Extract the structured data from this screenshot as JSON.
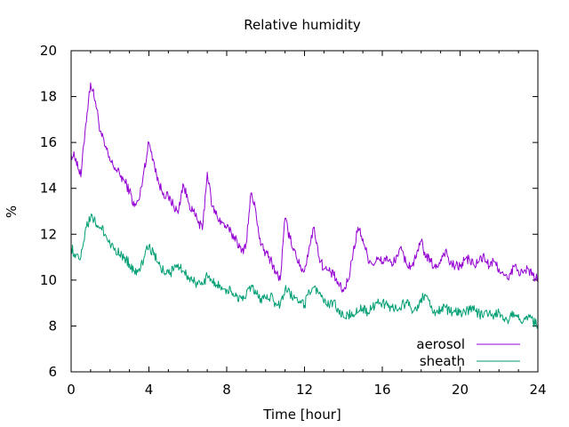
{
  "chart_data": {
    "type": "line",
    "title": "Relative humidity",
    "xlabel": "Time [hour]",
    "ylabel": "%",
    "xlim": [
      0,
      24
    ],
    "ylim": [
      6,
      20
    ],
    "x_ticks": [
      0,
      4,
      8,
      12,
      16,
      20,
      24
    ],
    "y_ticks": [
      6,
      8,
      10,
      12,
      14,
      16,
      18,
      20
    ],
    "x_tick_labels": [
      "0",
      "4",
      "8",
      "12",
      "16",
      "20",
      "24"
    ],
    "y_tick_labels": [
      "6",
      "8",
      "10",
      "12",
      "14",
      "16",
      "18",
      "20"
    ],
    "grid": false,
    "legend_position": "bottom-right",
    "x": [
      0.0,
      0.25,
      0.5,
      0.75,
      1.0,
      1.25,
      1.5,
      1.75,
      2.0,
      2.25,
      2.5,
      2.75,
      3.0,
      3.25,
      3.5,
      3.75,
      4.0,
      4.25,
      4.5,
      4.75,
      5.0,
      5.25,
      5.5,
      5.75,
      6.0,
      6.25,
      6.5,
      6.75,
      7.0,
      7.25,
      7.5,
      7.75,
      8.0,
      8.25,
      8.5,
      8.75,
      9.0,
      9.25,
      9.5,
      9.75,
      10.0,
      10.25,
      10.5,
      10.75,
      11.0,
      11.25,
      11.5,
      11.75,
      12.0,
      12.25,
      12.5,
      12.75,
      13.0,
      13.25,
      13.5,
      13.75,
      14.0,
      14.25,
      14.5,
      14.75,
      15.0,
      15.25,
      15.5,
      15.75,
      16.0,
      16.25,
      16.5,
      16.75,
      17.0,
      17.25,
      17.5,
      17.75,
      18.0,
      18.25,
      18.5,
      18.75,
      19.0,
      19.25,
      19.5,
      19.75,
      20.0,
      20.25,
      20.5,
      20.75,
      21.0,
      21.25,
      21.5,
      21.75,
      22.0,
      22.25,
      22.5,
      22.75,
      23.0,
      23.25,
      23.5,
      23.75,
      24.0
    ],
    "series": [
      {
        "name": "aerosol",
        "color": "#9400d3",
        "values": [
          15.5,
          15.3,
          14.5,
          16.8,
          18.6,
          17.8,
          16.5,
          15.8,
          15.2,
          14.9,
          14.6,
          14.3,
          13.9,
          13.2,
          13.5,
          14.8,
          16.0,
          15.2,
          14.2,
          13.8,
          13.6,
          13.3,
          12.9,
          14.2,
          13.5,
          13.0,
          12.6,
          12.2,
          14.7,
          13.2,
          12.8,
          12.5,
          12.3,
          12.0,
          11.8,
          11.2,
          11.6,
          13.8,
          13.0,
          11.5,
          11.2,
          10.9,
          10.4,
          10.0,
          12.7,
          11.8,
          11.3,
          10.6,
          10.4,
          11.5,
          12.3,
          11.0,
          10.5,
          10.4,
          10.2,
          9.8,
          9.5,
          10.0,
          11.2,
          12.3,
          11.8,
          11.0,
          10.7,
          10.9,
          10.8,
          11.0,
          10.6,
          11.1,
          11.3,
          10.7,
          10.6,
          11.0,
          11.7,
          11.0,
          10.8,
          10.5,
          10.9,
          11.3,
          10.7,
          10.6,
          10.6,
          10.9,
          10.9,
          10.6,
          10.9,
          11.0,
          10.6,
          10.8,
          10.5,
          10.2,
          10.0,
          10.6,
          10.4,
          10.3,
          10.5,
          10.2,
          10.0
        ]
      },
      {
        "name": "sheath",
        "color": "#009e73",
        "values": [
          11.4,
          11.1,
          11.0,
          12.3,
          12.7,
          12.5,
          12.3,
          12.0,
          11.6,
          11.4,
          11.1,
          11.0,
          10.7,
          10.4,
          10.5,
          11.0,
          11.5,
          11.1,
          10.7,
          10.4,
          10.3,
          10.4,
          10.7,
          10.4,
          10.2,
          10.0,
          9.8,
          9.8,
          10.2,
          9.9,
          9.8,
          9.7,
          9.6,
          9.5,
          9.3,
          9.2,
          9.3,
          9.7,
          9.4,
          9.2,
          9.2,
          9.3,
          9.0,
          8.9,
          9.6,
          9.4,
          9.2,
          9.0,
          8.9,
          9.5,
          9.7,
          9.4,
          9.0,
          8.9,
          9.1,
          8.7,
          8.4,
          8.5,
          8.5,
          8.6,
          8.8,
          8.6,
          8.8,
          9.0,
          9.0,
          8.9,
          8.8,
          8.7,
          8.9,
          9.0,
          8.7,
          8.7,
          9.2,
          9.3,
          8.8,
          8.6,
          8.7,
          8.8,
          8.6,
          8.6,
          8.6,
          8.6,
          8.7,
          8.7,
          8.5,
          8.6,
          8.6,
          8.5,
          8.6,
          8.3,
          8.2,
          8.6,
          8.5,
          8.2,
          8.4,
          8.2,
          8.0
        ]
      }
    ]
  }
}
